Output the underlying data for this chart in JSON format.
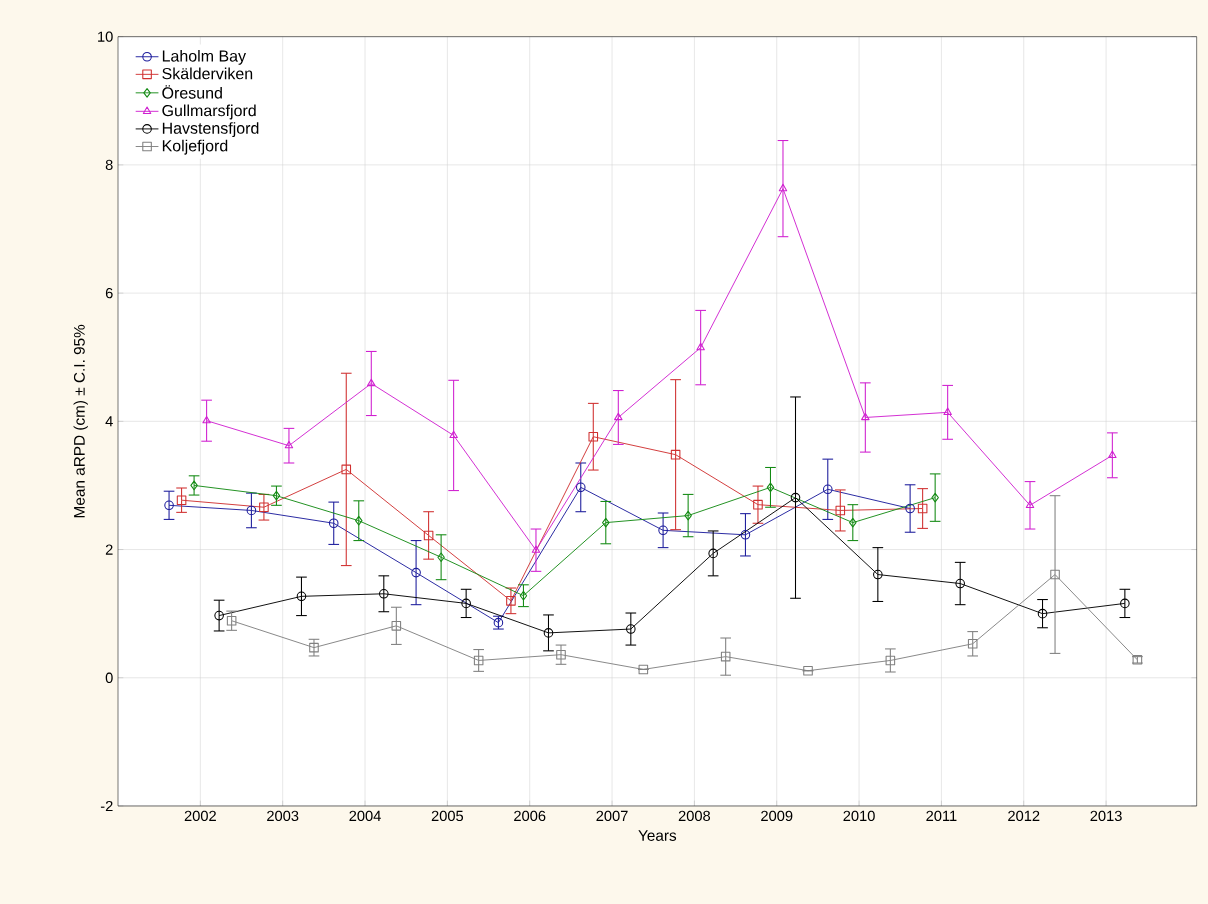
{
  "chart_data": {
    "type": "line",
    "xlabel": "Years",
    "ylabel": "Mean aRPD (cm) ± C.I. 95%",
    "categories": [
      "2002",
      "2003",
      "2004",
      "2005",
      "2006",
      "2007",
      "2008",
      "2009",
      "2010",
      "2011",
      "2012",
      "2013"
    ],
    "ylim": [
      -2,
      10
    ],
    "yticks": [
      -2,
      0,
      2,
      4,
      6,
      8,
      10
    ],
    "grid": true,
    "legend": "top left",
    "series": [
      {
        "name": "Laholm Bay",
        "color": "#1c1c9c",
        "marker": "circle",
        "values": [
          2.69,
          2.61,
          2.41,
          1.64,
          0.86,
          2.97,
          2.3,
          2.23,
          2.94,
          2.64,
          null,
          null
        ],
        "errors": [
          0.22,
          0.27,
          0.33,
          0.5,
          0.1,
          0.38,
          0.27,
          0.33,
          0.47,
          0.37,
          null,
          null
        ]
      },
      {
        "name": "Skälderviken",
        "color": "#d03030",
        "marker": "square",
        "values": [
          2.77,
          2.66,
          3.25,
          2.22,
          1.2,
          3.76,
          3.48,
          2.7,
          2.61,
          2.64,
          null,
          null
        ],
        "errors": [
          0.19,
          0.2,
          1.5,
          0.37,
          0.2,
          0.52,
          1.17,
          0.29,
          0.32,
          0.31,
          null,
          null
        ]
      },
      {
        "name": "Öresund",
        "color": "#138a13",
        "marker": "diamond",
        "values": [
          3.0,
          2.84,
          2.45,
          1.88,
          1.28,
          2.42,
          2.53,
          2.97,
          2.42,
          2.81,
          null,
          null
        ],
        "errors": [
          0.15,
          0.15,
          0.31,
          0.35,
          0.17,
          0.33,
          0.33,
          0.31,
          0.28,
          0.37,
          null,
          null
        ]
      },
      {
        "name": "Gullmarsfjord",
        "color": "#d020d0",
        "marker": "triangle",
        "values": [
          4.01,
          3.62,
          4.59,
          3.78,
          1.99,
          4.06,
          5.15,
          7.63,
          4.06,
          4.14,
          2.69,
          3.47
        ],
        "errors": [
          0.32,
          0.27,
          0.5,
          0.86,
          0.33,
          0.42,
          0.58,
          0.75,
          0.54,
          0.42,
          0.37,
          0.35
        ]
      },
      {
        "name": "Havstensfjord",
        "color": "#000000",
        "marker": "circle",
        "values": [
          0.97,
          1.27,
          1.31,
          1.16,
          0.7,
          0.76,
          1.94,
          2.81,
          1.61,
          1.47,
          1.0,
          1.16
        ],
        "errors": [
          0.24,
          0.3,
          0.28,
          0.22,
          0.28,
          0.25,
          0.35,
          1.57,
          0.42,
          0.33,
          0.22,
          0.22
        ]
      },
      {
        "name": "Koljefjord",
        "color": "#808080",
        "marker": "square",
        "values": [
          0.89,
          0.47,
          0.81,
          0.27,
          0.36,
          0.13,
          0.33,
          0.11,
          0.27,
          0.53,
          1.61,
          0.28
        ],
        "errors": [
          0.15,
          0.13,
          0.29,
          0.17,
          0.15,
          null,
          0.29,
          null,
          0.18,
          0.19,
          1.23,
          0.05
        ]
      }
    ]
  }
}
